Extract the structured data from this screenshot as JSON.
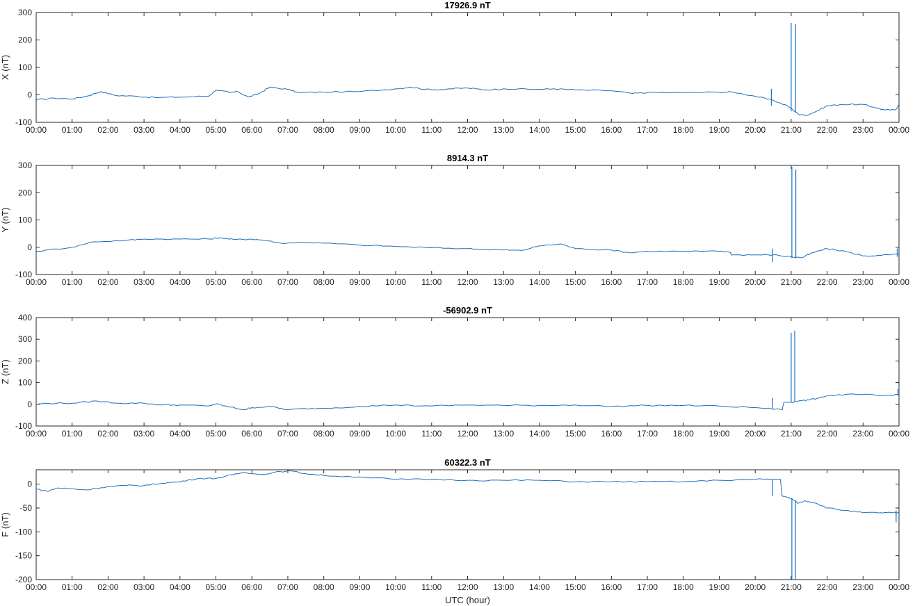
{
  "colors": {
    "series": "#1a6fbd",
    "axis": "#262626",
    "text": "#222222"
  },
  "x_tick_labels": [
    "00:00",
    "01:00",
    "02:00",
    "03:00",
    "04:00",
    "05:00",
    "06:00",
    "07:00",
    "08:00",
    "09:00",
    "10:00",
    "11:00",
    "12:00",
    "13:00",
    "14:00",
    "15:00",
    "16:00",
    "17:00",
    "18:00",
    "19:00",
    "20:00",
    "21:00",
    "22:00",
    "23:00",
    "00:00"
  ],
  "xlabel": "UTC (hour)",
  "chart_data": [
    {
      "type": "line",
      "title": "17926.9 nT",
      "ylabel": "X (nT)",
      "xlim": [
        0,
        24
      ],
      "ylim": [
        -100,
        300
      ],
      "yticks": [
        -100,
        0,
        100,
        200,
        300
      ],
      "grid": false,
      "series": [
        {
          "points": [
            [
              0,
              -18
            ],
            [
              0.5,
              -12
            ],
            [
              1,
              -15
            ],
            [
              1.4,
              -5
            ],
            [
              1.8,
              12
            ],
            [
              2.2,
              -2
            ],
            [
              2.8,
              -5
            ],
            [
              3.3,
              -10
            ],
            [
              4,
              -8
            ],
            [
              4.8,
              -5
            ],
            [
              5,
              18
            ],
            [
              5.4,
              8
            ],
            [
              5.6,
              12
            ],
            [
              5.9,
              -8
            ],
            [
              6.2,
              5
            ],
            [
              6.5,
              28
            ],
            [
              7,
              20
            ],
            [
              7.3,
              8
            ],
            [
              8,
              10
            ],
            [
              9,
              12
            ],
            [
              10,
              22
            ],
            [
              10.4,
              28
            ],
            [
              11,
              18
            ],
            [
              11.5,
              22
            ],
            [
              12,
              25
            ],
            [
              12.5,
              18
            ],
            [
              13,
              22
            ],
            [
              14,
              20
            ],
            [
              14.4,
              22
            ],
            [
              15,
              18
            ],
            [
              16,
              15
            ],
            [
              16.6,
              5
            ],
            [
              17,
              8
            ],
            [
              18,
              8
            ],
            [
              19,
              10
            ],
            [
              19.4,
              10
            ],
            [
              20,
              -5
            ],
            [
              20.5,
              -20
            ],
            [
              20.9,
              -40
            ],
            [
              21.2,
              -70
            ],
            [
              21.4,
              -75
            ],
            [
              21.7,
              -60
            ],
            [
              22,
              -40
            ],
            [
              22.4,
              -35
            ],
            [
              23,
              -35
            ],
            [
              23.3,
              -45
            ],
            [
              23.6,
              -55
            ],
            [
              23.9,
              -55
            ],
            [
              24,
              -35
            ]
          ],
          "spikes": [
            [
              20.45,
              -40,
              22
            ],
            [
              21.0,
              -60,
              262
            ],
            [
              21.12,
              -65,
              258
            ]
          ]
        }
      ]
    },
    {
      "type": "line",
      "title": "8914.3 nT",
      "ylabel": "Y (nT)",
      "xlim": [
        0,
        24
      ],
      "ylim": [
        -100,
        300
      ],
      "yticks": [
        -100,
        0,
        100,
        200,
        300
      ],
      "grid": false,
      "series": [
        {
          "points": [
            [
              0,
              -15
            ],
            [
              1,
              0
            ],
            [
              1.6,
              20
            ],
            [
              2.5,
              25
            ],
            [
              3,
              30
            ],
            [
              4,
              30
            ],
            [
              4.8,
              30
            ],
            [
              5.1,
              35
            ],
            [
              5.5,
              28
            ],
            [
              6,
              30
            ],
            [
              6.4,
              25
            ],
            [
              6.8,
              15
            ],
            [
              7.5,
              18
            ],
            [
              8,
              15
            ],
            [
              9,
              8
            ],
            [
              10,
              3
            ],
            [
              11,
              -2
            ],
            [
              12,
              -5
            ],
            [
              12.5,
              -8
            ],
            [
              13,
              -10
            ],
            [
              13.5,
              -12
            ],
            [
              14,
              5
            ],
            [
              14.6,
              12
            ],
            [
              15,
              -5
            ],
            [
              16,
              -10
            ],
            [
              16.5,
              -20
            ],
            [
              17,
              -15
            ],
            [
              18,
              -15
            ],
            [
              19,
              -15
            ],
            [
              19.3,
              -18
            ],
            [
              19.35,
              -28
            ],
            [
              20,
              -28
            ],
            [
              20.5,
              -28
            ],
            [
              21,
              -35
            ],
            [
              21.3,
              -38
            ],
            [
              21.6,
              -20
            ],
            [
              22,
              -5
            ],
            [
              22.5,
              -15
            ],
            [
              23,
              -32
            ],
            [
              23.5,
              -30
            ],
            [
              24,
              -25
            ]
          ],
          "spikes": [
            [
              20.48,
              -55,
              -5
            ],
            [
              21.02,
              -40,
              295
            ],
            [
              21.13,
              -40,
              285
            ],
            [
              23.95,
              -35,
              -5
            ]
          ]
        }
      ]
    },
    {
      "type": "line",
      "title": "-56902.9 nT",
      "ylabel": "Z (nT)",
      "xlim": [
        0,
        24
      ],
      "ylim": [
        -100,
        400
      ],
      "yticks": [
        -100,
        0,
        100,
        200,
        300,
        400
      ],
      "grid": false,
      "series": [
        {
          "points": [
            [
              0,
              0
            ],
            [
              0.3,
              5
            ],
            [
              1,
              5
            ],
            [
              1.7,
              15
            ],
            [
              2.3,
              5
            ],
            [
              3,
              5
            ],
            [
              3.5,
              -3
            ],
            [
              4,
              -3
            ],
            [
              4.8,
              -8
            ],
            [
              5,
              2
            ],
            [
              5.3,
              -10
            ],
            [
              5.8,
              -25
            ],
            [
              6,
              -15
            ],
            [
              6.5,
              -10
            ],
            [
              7,
              -25
            ],
            [
              7.5,
              -20
            ],
            [
              8,
              -18
            ],
            [
              9,
              -10
            ],
            [
              10,
              -3
            ],
            [
              11,
              -8
            ],
            [
              12,
              -3
            ],
            [
              13,
              -5
            ],
            [
              14,
              -5
            ],
            [
              15,
              -3
            ],
            [
              16,
              -10
            ],
            [
              17,
              -5
            ],
            [
              18,
              -5
            ],
            [
              19,
              -8
            ],
            [
              20,
              -15
            ],
            [
              20.75,
              -25
            ],
            [
              20.8,
              10
            ],
            [
              21.0,
              10
            ],
            [
              21.2,
              15
            ],
            [
              21.5,
              20
            ],
            [
              22,
              40
            ],
            [
              22.5,
              45
            ],
            [
              23,
              45
            ],
            [
              23.5,
              40
            ],
            [
              24,
              45
            ]
          ],
          "spikes": [
            [
              20.48,
              -20,
              30
            ],
            [
              21.0,
              10,
              330
            ],
            [
              21.1,
              10,
              340
            ],
            [
              23.97,
              40,
              70
            ]
          ]
        }
      ]
    },
    {
      "type": "line",
      "title": "60322.3 nT",
      "ylabel": "F (nT)",
      "xlim": [
        0,
        24
      ],
      "ylim": [
        -200,
        30
      ],
      "yticks": [
        -200,
        -150,
        -100,
        -50,
        0
      ],
      "grid": false,
      "series": [
        {
          "points": [
            [
              0,
              -10
            ],
            [
              0.3,
              -15
            ],
            [
              0.6,
              -8
            ],
            [
              1,
              -10
            ],
            [
              1.4,
              -12
            ],
            [
              2,
              -5
            ],
            [
              2.5,
              -3
            ],
            [
              3,
              -3
            ],
            [
              3.5,
              2
            ],
            [
              4,
              5
            ],
            [
              4.5,
              12
            ],
            [
              5,
              12
            ],
            [
              5.5,
              20
            ],
            [
              5.8,
              25
            ],
            [
              6.2,
              20
            ],
            [
              7,
              28
            ],
            [
              7.5,
              22
            ],
            [
              8,
              18
            ],
            [
              9,
              15
            ],
            [
              10,
              10
            ],
            [
              11,
              10
            ],
            [
              12,
              8
            ],
            [
              13,
              8
            ],
            [
              14,
              8
            ],
            [
              15,
              5
            ],
            [
              16,
              5
            ],
            [
              17,
              5
            ],
            [
              18,
              5
            ],
            [
              19,
              8
            ],
            [
              20,
              10
            ],
            [
              20.7,
              10
            ],
            [
              20.75,
              -25
            ],
            [
              21.0,
              -30
            ],
            [
              21.2,
              -40
            ],
            [
              21.4,
              -35
            ],
            [
              21.7,
              -40
            ],
            [
              22,
              -50
            ],
            [
              22.5,
              -55
            ],
            [
              23,
              -60
            ],
            [
              23.5,
              -60
            ],
            [
              23.8,
              -60
            ],
            [
              24,
              -60
            ]
          ],
          "spikes": [
            [
              20.48,
              -25,
              10
            ],
            [
              21.02,
              -200,
              -30
            ],
            [
              21.12,
              -200,
              -35
            ],
            [
              23.92,
              -80,
              -55
            ]
          ]
        }
      ]
    }
  ]
}
